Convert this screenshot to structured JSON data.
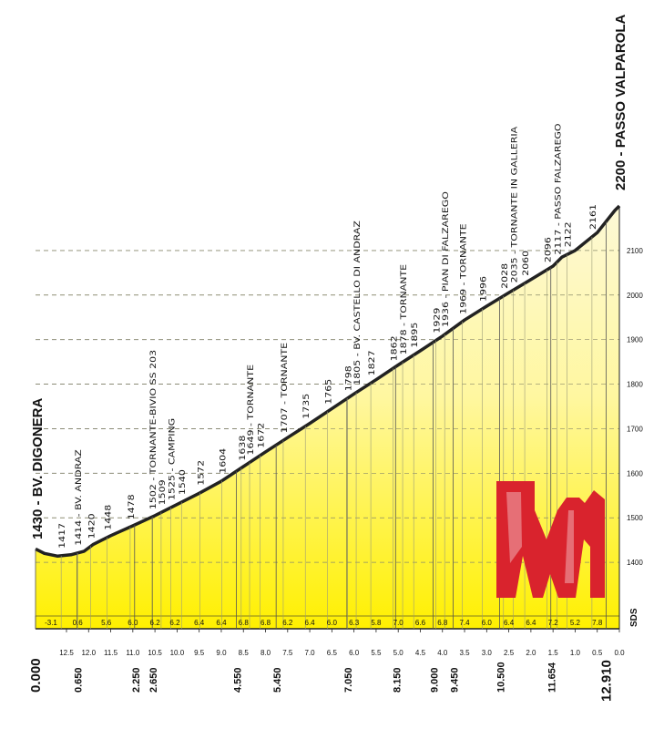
{
  "chart_data": {
    "type": "area",
    "title": "",
    "start_label": "1430 - BV. DIGONERA",
    "end_label": "2200 - PASSO VALPAROLA",
    "xlabel": "",
    "ylabel": "",
    "x_reversed": true,
    "xlim": [
      13.2,
      0.0
    ],
    "ylim": [
      1300,
      2200
    ],
    "y_ticks": [
      1400,
      1500,
      1600,
      1700,
      1800,
      1900,
      2000,
      2100
    ],
    "grid": true,
    "distance_ticks": [
      12.5,
      12.0,
      11.5,
      11.0,
      10.5,
      10.0,
      9.5,
      9.0,
      8.5,
      8.0,
      7.5,
      7.0,
      6.5,
      6.0,
      5.5,
      5.0,
      4.5,
      4.0,
      3.5,
      3.0,
      2.5,
      2.0,
      1.5,
      1.0,
      0.5,
      0.0
    ],
    "distance_tick_labels": [
      "12.5",
      "12.0",
      "11.5",
      "11.0",
      "10.5",
      "10.0",
      "9.5",
      "9.0",
      "8.5",
      "8.0",
      "7.5",
      "7.0",
      "6.5",
      "6.0",
      "5.5",
      "5.0",
      "4.5",
      "4.0",
      "3.5",
      "3.0",
      "2.5",
      "2.0",
      "1.5",
      "1.0",
      "0.5",
      "0.0"
    ],
    "profile": {
      "x": [
        13.2,
        13.0,
        12.7,
        12.4,
        12.1,
        11.9,
        11.5,
        11.0,
        10.5,
        10.0,
        9.5,
        9.0,
        8.5,
        8.0,
        7.5,
        7.0,
        6.5,
        6.0,
        5.5,
        5.0,
        4.5,
        4.0,
        3.5,
        3.0,
        2.5,
        2.0,
        1.5,
        1.3,
        1.0,
        0.5,
        0.1,
        0.0
      ],
      "y": [
        1430,
        1420,
        1414,
        1417,
        1425,
        1440,
        1460,
        1482,
        1505,
        1530,
        1555,
        1582,
        1615,
        1648,
        1680,
        1712,
        1745,
        1778,
        1810,
        1843,
        1875,
        1908,
        1944,
        1975,
        2005,
        2035,
        2065,
        2085,
        2100,
        2140,
        2190,
        2200
      ]
    },
    "points": [
      {
        "x": 12.62,
        "label": "1417"
      },
      {
        "x": 12.25,
        "label": "1414 - BV. ANDRAZ"
      },
      {
        "x": 11.95,
        "label": "1420"
      },
      {
        "x": 11.58,
        "label": "1448"
      },
      {
        "x": 11.06,
        "label": "1478"
      },
      {
        "x": 10.56,
        "label": "1502 - TORNANTE-BIVIO SS 203"
      },
      {
        "x": 10.36,
        "label": "1509"
      },
      {
        "x": 10.14,
        "label": "1525 - CAMPING"
      },
      {
        "x": 9.9,
        "label": "1540"
      },
      {
        "x": 9.48,
        "label": "1572"
      },
      {
        "x": 8.99,
        "label": "1604"
      },
      {
        "x": 8.55,
        "label": "1638"
      },
      {
        "x": 8.36,
        "label": "1649 - TORNANTE"
      },
      {
        "x": 8.12,
        "label": "1672"
      },
      {
        "x": 7.6,
        "label": "1707 - TORNANTE"
      },
      {
        "x": 7.1,
        "label": "1735"
      },
      {
        "x": 6.6,
        "label": "1765"
      },
      {
        "x": 6.15,
        "label": "1798"
      },
      {
        "x": 5.95,
        "label": "1805 - BV. CASTELLO DI ANDRAZ"
      },
      {
        "x": 5.62,
        "label": "1827"
      },
      {
        "x": 5.12,
        "label": "1862"
      },
      {
        "x": 4.9,
        "label": "1878 - TORNANTE"
      },
      {
        "x": 4.65,
        "label": "1895"
      },
      {
        "x": 4.15,
        "label": "1929"
      },
      {
        "x": 3.95,
        "label": "1936 - PIAN DI FALZAREGO"
      },
      {
        "x": 3.55,
        "label": "1969 - TORNANTE"
      },
      {
        "x": 3.1,
        "label": "1996"
      },
      {
        "x": 2.62,
        "label": "2028"
      },
      {
        "x": 2.4,
        "label": "2035 - TORNANTE IN GALLERIA"
      },
      {
        "x": 2.14,
        "label": "2060"
      },
      {
        "x": 1.64,
        "label": "2096"
      },
      {
        "x": 1.41,
        "label": "2117 - PASSO FALZAREGO"
      },
      {
        "x": 1.18,
        "label": "2122"
      },
      {
        "x": 0.62,
        "label": "2161"
      }
    ],
    "gradients": [
      {
        "x": 12.85,
        "label": "-3.1"
      },
      {
        "x": 12.25,
        "label": "0.6"
      },
      {
        "x": 11.6,
        "label": "5.6"
      },
      {
        "x": 11.0,
        "label": "6.0"
      },
      {
        "x": 10.5,
        "label": "6.2"
      },
      {
        "x": 10.05,
        "label": "6.2"
      },
      {
        "x": 9.5,
        "label": "6.4"
      },
      {
        "x": 9.0,
        "label": "6.4"
      },
      {
        "x": 8.5,
        "label": "6.8"
      },
      {
        "x": 8.0,
        "label": "6.8"
      },
      {
        "x": 7.5,
        "label": "6.2"
      },
      {
        "x": 7.0,
        "label": "6.4"
      },
      {
        "x": 6.5,
        "label": "6.0"
      },
      {
        "x": 6.0,
        "label": "6.3"
      },
      {
        "x": 5.5,
        "label": "5.8"
      },
      {
        "x": 5.0,
        "label": "7.0"
      },
      {
        "x": 4.5,
        "label": "6.6"
      },
      {
        "x": 4.0,
        "label": "6.8"
      },
      {
        "x": 3.5,
        "label": "7.4"
      },
      {
        "x": 3.0,
        "label": "6.0"
      },
      {
        "x": 2.5,
        "label": "6.4"
      },
      {
        "x": 2.0,
        "label": "6.4"
      },
      {
        "x": 1.5,
        "label": "7.2"
      },
      {
        "x": 1.0,
        "label": "5.2"
      },
      {
        "x": 0.5,
        "label": "7.8"
      }
    ],
    "km_markers": [
      {
        "x": 13.2,
        "label": "0.000"
      },
      {
        "x": 12.26,
        "label": "0.650"
      },
      {
        "x": 10.96,
        "label": "2.250"
      },
      {
        "x": 10.56,
        "label": "2.650"
      },
      {
        "x": 8.66,
        "label": "4.550"
      },
      {
        "x": 7.76,
        "label": "5.450"
      },
      {
        "x": 6.16,
        "label": "7.050"
      },
      {
        "x": 5.06,
        "label": "8.150"
      },
      {
        "x": 4.21,
        "label": "9.000"
      },
      {
        "x": 3.76,
        "label": "9.450"
      },
      {
        "x": 2.71,
        "label": "10.500"
      },
      {
        "x": 1.55,
        "label": "11.654"
      },
      {
        "x": 0.3,
        "label": "12.910"
      }
    ],
    "colors": {
      "fill_top": "#fdf7c3",
      "fill_bottom": "#fff200",
      "profile_line": "#222222",
      "logo": "#d9232d",
      "grid": "#777777"
    }
  },
  "logo": {
    "name": "giro-logo",
    "text": ""
  },
  "corner_mark": "SDS"
}
